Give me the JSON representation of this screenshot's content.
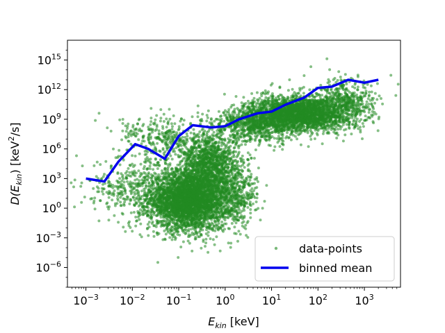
{
  "chart_data": {
    "type": "scatter",
    "title": "",
    "xlabel": {
      "base": "E",
      "sub": "kin",
      "unit": " [keV]"
    },
    "ylabel": {
      "pre": "D(E",
      "sub": "kin",
      "mid": ") [keV",
      "sup": "2",
      "post": "/s]"
    },
    "x_scale": "log",
    "y_scale": "log",
    "xlim": [
      0.0004,
      6000
    ],
    "ylim": [
      1e-08,
      1e+17
    ],
    "x_ticks": [
      {
        "value": 0.001,
        "base": "10",
        "exp": "−3"
      },
      {
        "value": 0.01,
        "base": "10",
        "exp": "−2"
      },
      {
        "value": 0.1,
        "base": "10",
        "exp": "−1"
      },
      {
        "value": 1,
        "base": "10",
        "exp": "0"
      },
      {
        "value": 10,
        "base": "10",
        "exp": "1"
      },
      {
        "value": 100,
        "base": "10",
        "exp": "2"
      },
      {
        "value": 1000,
        "base": "10",
        "exp": "3"
      }
    ],
    "y_ticks": [
      {
        "value": 1e-06,
        "base": "10",
        "exp": "−6"
      },
      {
        "value": 0.001,
        "base": "10",
        "exp": "−3"
      },
      {
        "value": 1,
        "base": "10",
        "exp": "0"
      },
      {
        "value": 1000.0,
        "base": "10",
        "exp": "3"
      },
      {
        "value": 1000000.0,
        "base": "10",
        "exp": "6"
      },
      {
        "value": 1000000000.0,
        "base": "10",
        "exp": "9"
      },
      {
        "value": 1000000000000.0,
        "base": "10",
        "exp": "12"
      },
      {
        "value": 1000000000000000.0,
        "base": "10",
        "exp": "15"
      }
    ],
    "grid": false,
    "legend_position": "bottom-right",
    "series": [
      {
        "name": "data-points",
        "kind": "scatter",
        "color": "#228B22",
        "clusters": [
          {
            "x_log_mean": -0.8,
            "x_log_sd": 0.42,
            "y_log_mean": 0.8,
            "y_log_sd": 1.5,
            "count": 3600
          },
          {
            "x_log_mean": -0.35,
            "x_log_sd": 0.3,
            "y_log_mean": 4.5,
            "y_log_sd": 1.6,
            "count": 1200
          },
          {
            "x_log_mean": 1.6,
            "x_log_sd": 0.5,
            "y_log_mean": 9.6,
            "y_log_sd": 0.9,
            "count": 2400
          },
          {
            "x_log_mean": 0.7,
            "x_log_sd": 0.45,
            "y_log_mean": 8.5,
            "y_log_sd": 0.9,
            "count": 800
          },
          {
            "x_log_mean": 2.6,
            "x_log_sd": 0.35,
            "y_log_mean": 10.5,
            "y_log_sd": 1.2,
            "count": 500
          },
          {
            "x_log_mean": 0.2,
            "x_log_sd": 0.25,
            "y_log_mean": 1.5,
            "y_log_sd": 1.8,
            "count": 500
          },
          {
            "x_log_mean": -2.0,
            "x_log_sd": 0.5,
            "y_log_mean": 2.0,
            "y_log_sd": 1.4,
            "count": 350
          },
          {
            "x_log_mean": -1.3,
            "x_log_sd": 0.5,
            "y_log_mean": 7.0,
            "y_log_sd": 1.3,
            "count": 350
          }
        ]
      },
      {
        "name": "binned mean",
        "kind": "line",
        "color": "#0000EE",
        "points": [
          [
            0.001,
            1000.0
          ],
          [
            0.0025,
            500.0
          ],
          [
            0.005,
            50000.0
          ],
          [
            0.0115,
            3000000.0
          ],
          [
            0.022,
            1000000.0
          ],
          [
            0.05,
            100000.0
          ],
          [
            0.1,
            20000000.0
          ],
          [
            0.2,
            250000000.0
          ],
          [
            0.5,
            150000000.0
          ],
          [
            1.0,
            200000000.0
          ],
          [
            2.0,
            1000000000.0
          ],
          [
            5.0,
            4000000000.0
          ],
          [
            10.0,
            6000000000.0
          ],
          [
            20.0,
            30000000000.0
          ],
          [
            50.0,
            150000000000.0
          ],
          [
            100.0,
            1500000000000.0
          ],
          [
            200.0,
            2000000000000.0
          ],
          [
            450.0,
            10000000000000.0
          ],
          [
            1000.0,
            5000000000000.0
          ],
          [
            2000.0,
            10000000000000.0
          ]
        ]
      }
    ]
  }
}
